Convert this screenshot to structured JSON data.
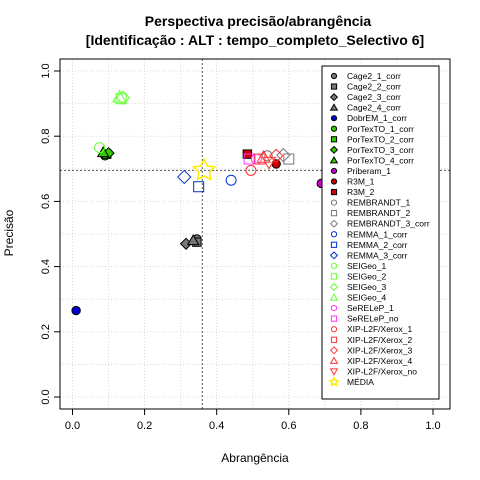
{
  "chart_data": {
    "type": "scatter",
    "title": "Perspectiva precisão/abrangência",
    "subtitle": "[Identificação : ALT : tempo_completo_Selectivo 6]",
    "xlabel": "Abrangência",
    "ylabel": "Precisão",
    "xlim": [
      0,
      1
    ],
    "ylim": [
      0,
      1
    ],
    "xticks": [
      "0.0",
      "0.2",
      "0.4",
      "0.6",
      "0.8",
      "1.0"
    ],
    "yticks": [
      "0.0",
      "0.2",
      "0.4",
      "0.6",
      "0.8",
      "1.0"
    ],
    "grid": true,
    "legend_position": "right",
    "reference_lines": {
      "x": 0.36,
      "y": 0.695
    },
    "series": [
      {
        "name": "Cage2_1_corr",
        "shape": "circle",
        "filled": true,
        "color": "#777777",
        "points": [
          [
            0.345,
            0.485
          ]
        ]
      },
      {
        "name": "Cage2_2_corr",
        "shape": "square",
        "filled": true,
        "color": "#777777",
        "points": [
          [
            0.345,
            0.475
          ]
        ]
      },
      {
        "name": "Cage2_3_corr",
        "shape": "diamond",
        "filled": true,
        "color": "#777777",
        "points": [
          [
            0.315,
            0.47
          ]
        ]
      },
      {
        "name": "Cage2_4_corr",
        "shape": "triangle",
        "filled": true,
        "color": "#777777",
        "points": [
          [
            0.335,
            0.48
          ]
        ]
      },
      {
        "name": "DobrEM_1_corr",
        "shape": "circle",
        "filled": true,
        "color": "#0000cc",
        "points": [
          [
            0.01,
            0.265
          ]
        ]
      },
      {
        "name": "PorTexTO_1_corr",
        "shape": "circle",
        "filled": true,
        "color": "#33cc00",
        "points": [
          [
            0.09,
            0.74
          ]
        ]
      },
      {
        "name": "PorTexTO_2_corr",
        "shape": "square",
        "filled": true,
        "color": "#33cc00",
        "points": [
          [
            0.095,
            0.745
          ]
        ]
      },
      {
        "name": "PorTexTO_3_corr",
        "shape": "diamond",
        "filled": true,
        "color": "#33cc00",
        "points": [
          [
            0.1,
            0.748
          ]
        ]
      },
      {
        "name": "PorTexTO_4_corr",
        "shape": "triangle",
        "filled": true,
        "color": "#33cc00",
        "points": [
          [
            0.085,
            0.75
          ]
        ]
      },
      {
        "name": "Priberam_1",
        "shape": "circle",
        "filled": true,
        "color": "#cc00cc",
        "points": [
          [
            0.69,
            0.655
          ]
        ]
      },
      {
        "name": "R3M_1",
        "shape": "circle",
        "filled": true,
        "color": "#cc0000",
        "points": [
          [
            0.565,
            0.715
          ]
        ]
      },
      {
        "name": "R3M_2",
        "shape": "square",
        "filled": true,
        "color": "#cc0000",
        "points": [
          [
            0.485,
            0.745
          ]
        ]
      },
      {
        "name": "REMBRANDT_1",
        "shape": "circle",
        "filled": false,
        "color": "#777777",
        "points": [
          [
            0.54,
            0.74
          ]
        ]
      },
      {
        "name": "REMBRANDT_2",
        "shape": "square",
        "filled": false,
        "color": "#777777",
        "points": [
          [
            0.6,
            0.73
          ]
        ]
      },
      {
        "name": "REMBRANDT_3_corr",
        "shape": "diamond",
        "filled": false,
        "color": "#777777",
        "points": [
          [
            0.585,
            0.742
          ]
        ]
      },
      {
        "name": "REMMA_1_corr",
        "shape": "circle",
        "filled": false,
        "color": "#0033cc",
        "points": [
          [
            0.44,
            0.665
          ]
        ]
      },
      {
        "name": "REMMA_2_corr",
        "shape": "square",
        "filled": false,
        "color": "#0033cc",
        "points": [
          [
            0.35,
            0.645
          ]
        ]
      },
      {
        "name": "REMMA_3_corr",
        "shape": "diamond",
        "filled": false,
        "color": "#0033cc",
        "points": [
          [
            0.31,
            0.675
          ]
        ]
      },
      {
        "name": "SEIGeo_1",
        "shape": "circle",
        "filled": false,
        "color": "#66ff33",
        "points": [
          [
            0.075,
            0.765
          ]
        ]
      },
      {
        "name": "SEIGeo_2",
        "shape": "square",
        "filled": false,
        "color": "#66ff33",
        "points": [
          [
            0.135,
            0.915
          ]
        ]
      },
      {
        "name": "SEIGeo_3",
        "shape": "diamond",
        "filled": false,
        "color": "#66ff33",
        "points": [
          [
            0.14,
            0.918
          ]
        ]
      },
      {
        "name": "SEIGeo_4",
        "shape": "triangle",
        "filled": false,
        "color": "#66ff33",
        "points": [
          [
            0.13,
            0.92
          ]
        ]
      },
      {
        "name": "SeRELeP_1",
        "shape": "circle",
        "filled": false,
        "color": "#ff33ff",
        "points": [
          [
            0.51,
            0.73
          ]
        ]
      },
      {
        "name": "SeRELeP_no",
        "shape": "square",
        "filled": false,
        "color": "#ff33ff",
        "points": [
          [
            0.49,
            0.73
          ]
        ]
      },
      {
        "name": "XIP-L2F/Xerox_1",
        "shape": "circle",
        "filled": false,
        "color": "#ff3333",
        "points": [
          [
            0.495,
            0.695
          ]
        ]
      },
      {
        "name": "XIP-L2F/Xerox_2",
        "shape": "square",
        "filled": false,
        "color": "#ff3333",
        "points": [
          [
            0.52,
            0.73
          ]
        ]
      },
      {
        "name": "XIP-L2F/Xerox_3",
        "shape": "diamond",
        "filled": false,
        "color": "#ff3333",
        "points": [
          [
            0.565,
            0.74
          ]
        ]
      },
      {
        "name": "XIP-L2F/Xerox_4",
        "shape": "triangle",
        "filled": false,
        "color": "#ff3333",
        "points": [
          [
            0.53,
            0.735
          ]
        ]
      },
      {
        "name": "XIP-L2F/Xerox_no",
        "shape": "triangle-down",
        "filled": false,
        "color": "#ff3333",
        "points": [
          [
            0.545,
            0.72
          ]
        ]
      },
      {
        "name": "MÉDIA",
        "shape": "star",
        "filled": false,
        "color": "#ffee00",
        "points": [
          [
            0.365,
            0.695
          ]
        ]
      }
    ]
  }
}
